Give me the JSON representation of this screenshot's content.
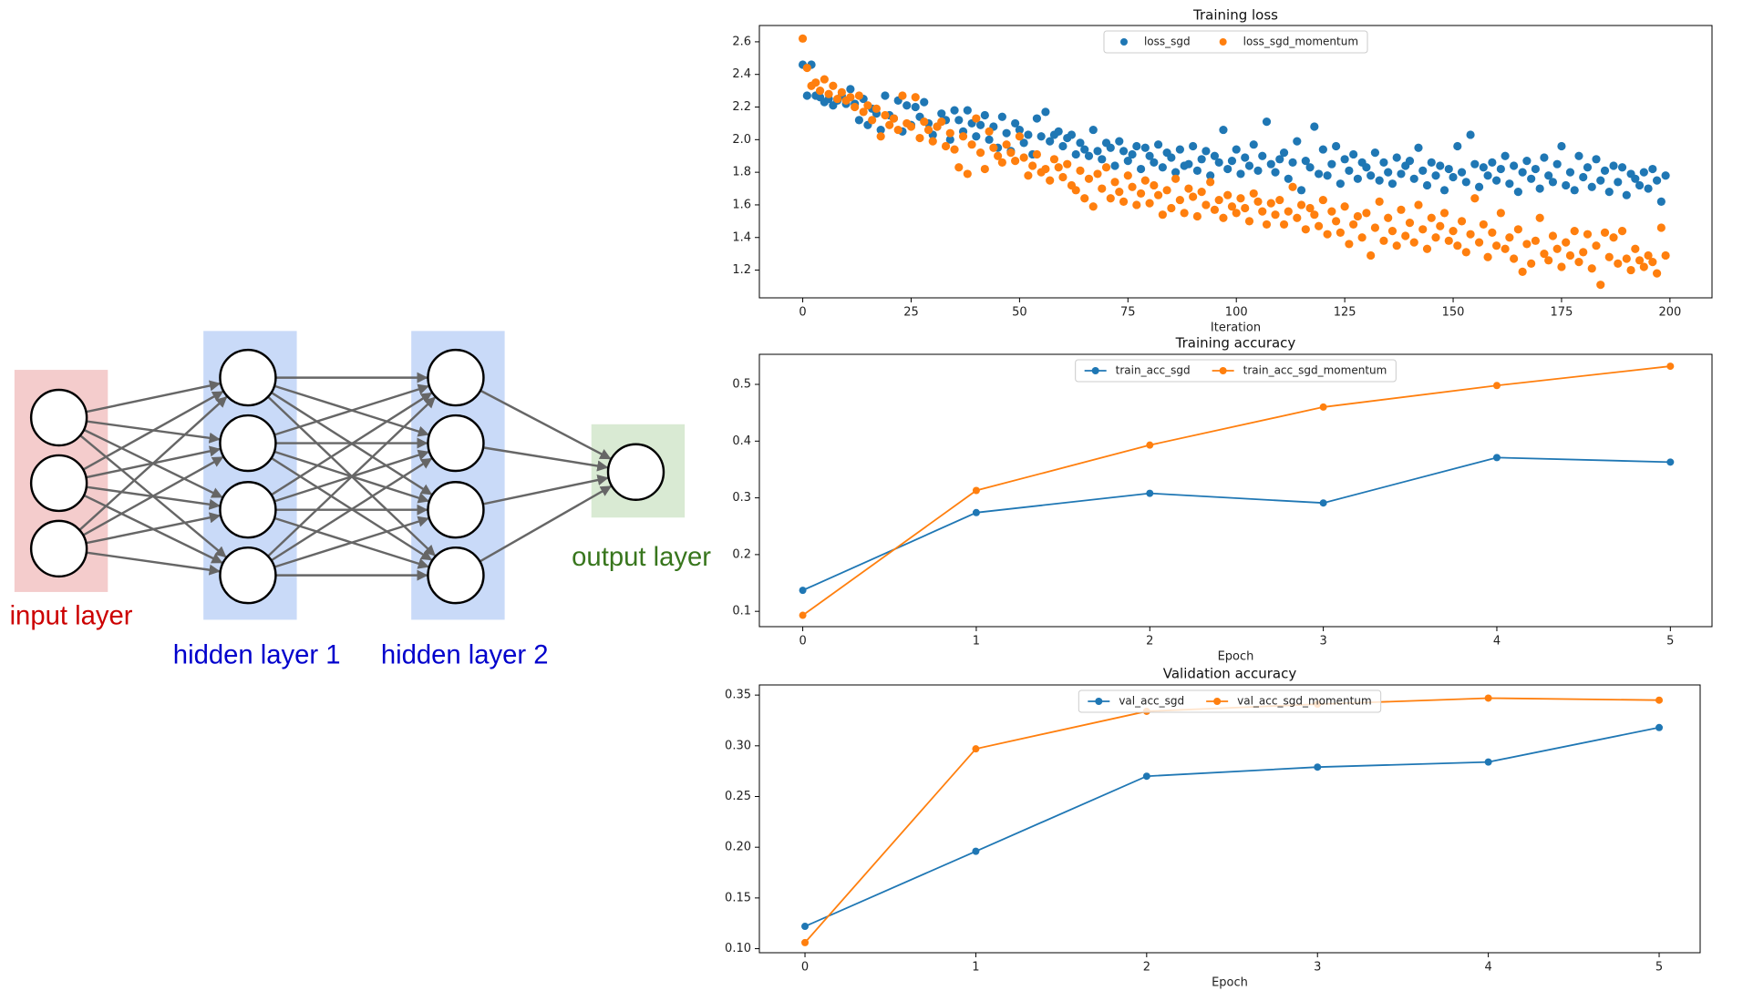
{
  "diagram": {
    "layer_labels": [
      "input layer",
      "hidden layer 1",
      "hidden layer 2",
      "output layer"
    ]
  },
  "chart_data": [
    {
      "type": "scatter",
      "title": "Training loss",
      "x_label": "Iteration",
      "legend": "upper center",
      "xlim": [
        -10,
        209.7
      ],
      "xticks": [
        0,
        25,
        50,
        75,
        100,
        125,
        150,
        175,
        200
      ],
      "ylim": [
        1.03,
        2.7
      ],
      "yticks": [
        1.2,
        1.4,
        1.6,
        1.8,
        {
          "value": 2,
          "label": "2.0"
        },
        2.2,
        2.4,
        2.6
      ],
      "x": [
        0,
        1,
        2,
        3,
        4,
        5,
        6,
        7,
        8,
        9,
        10,
        11,
        12,
        13,
        14,
        15,
        16,
        17,
        18,
        19,
        20,
        21,
        22,
        23,
        24,
        25,
        26,
        27,
        28,
        29,
        30,
        31,
        32,
        33,
        34,
        35,
        36,
        37,
        38,
        39,
        40,
        41,
        42,
        43,
        44,
        45,
        46,
        47,
        48,
        49,
        50,
        51,
        52,
        53,
        54,
        55,
        56,
        57,
        58,
        59,
        60,
        61,
        62,
        63,
        64,
        65,
        66,
        67,
        68,
        69,
        70,
        71,
        72,
        73,
        74,
        75,
        76,
        77,
        78,
        79,
        80,
        81,
        82,
        83,
        84,
        85,
        86,
        87,
        88,
        89,
        90,
        91,
        92,
        93,
        94,
        95,
        96,
        97,
        98,
        99,
        100,
        101,
        102,
        103,
        104,
        105,
        106,
        107,
        108,
        109,
        110,
        111,
        112,
        113,
        114,
        115,
        116,
        117,
        118,
        119,
        120,
        121,
        122,
        123,
        124,
        125,
        126,
        127,
        128,
        129,
        130,
        131,
        132,
        133,
        134,
        135,
        136,
        137,
        138,
        139,
        140,
        141,
        142,
        143,
        144,
        145,
        146,
        147,
        148,
        149,
        150,
        151,
        152,
        153,
        154,
        155,
        156,
        157,
        158,
        159,
        160,
        161,
        162,
        163,
        164,
        165,
        166,
        167,
        168,
        169,
        170,
        171,
        172,
        173,
        174,
        175,
        176,
        177,
        178,
        179,
        180,
        181,
        182,
        183,
        184,
        185,
        186,
        187,
        188,
        189,
        190,
        191,
        192,
        193,
        194,
        195,
        196,
        197,
        198,
        199
      ],
      "series": [
        {
          "name": "loss_sgd",
          "color": "#1f77b4",
          "values": [
            2.46,
            2.27,
            2.46,
            2.27,
            2.26,
            2.23,
            2.25,
            2.21,
            2.24,
            2.27,
            2.22,
            2.31,
            2.22,
            2.12,
            2.25,
            2.09,
            2.19,
            2.16,
            2.06,
            2.27,
            2.15,
            2.13,
            2.24,
            2.05,
            2.21,
            2.09,
            2.2,
            2.14,
            2.23,
            2.1,
            2.03,
            2.08,
            2.16,
            2.12,
            2.0,
            2.18,
            2.12,
            2.05,
            2.18,
            2.1,
            2.02,
            2.09,
            2.15,
            2.0,
            2.08,
            1.95,
            2.14,
            2.04,
            1.93,
            2.1,
            2.06,
            1.98,
            2.03,
            1.91,
            2.13,
            2.02,
            2.17,
            1.99,
            2.03,
            2.05,
            1.96,
            2.01,
            2.03,
            1.91,
            1.98,
            1.94,
            1.9,
            2.06,
            1.93,
            1.88,
            1.98,
            1.95,
            1.84,
            1.99,
            1.93,
            1.87,
            1.91,
            1.96,
            1.82,
            1.95,
            1.9,
            1.86,
            1.97,
            1.83,
            1.92,
            1.89,
            1.8,
            1.94,
            1.84,
            1.85,
            1.96,
            1.81,
            1.88,
            1.93,
            1.78,
            1.9,
            1.86,
            2.06,
            1.82,
            1.87,
            1.94,
            1.79,
            1.89,
            1.84,
            1.97,
            1.81,
            1.9,
            2.11,
            1.85,
            1.8,
            1.88,
            1.92,
            1.76,
            1.86,
            1.99,
            1.69,
            1.87,
            1.83,
            2.08,
            1.79,
            1.94,
            1.78,
            1.85,
            1.96,
            1.73,
            1.88,
            1.81,
            1.91,
            1.76,
            1.86,
            1.83,
            1.78,
            1.92,
            1.75,
            1.86,
            1.8,
            1.73,
            1.89,
            1.79,
            1.84,
            1.87,
            1.76,
            1.95,
            1.81,
            1.72,
            1.86,
            1.78,
            1.84,
            1.69,
            1.82,
            1.77,
            1.96,
            1.8,
            1.74,
            2.03,
            1.85,
            1.71,
            1.83,
            1.78,
            1.86,
            1.75,
            1.82,
            1.9,
            1.73,
            1.84,
            1.68,
            1.8,
            1.87,
            1.76,
            1.82,
            1.7,
            1.89,
            1.78,
            1.74,
            1.85,
            1.96,
            1.72,
            1.8,
            1.69,
            1.9,
            1.77,
            1.83,
            1.71,
            1.88,
            1.75,
            1.81,
            1.68,
            1.84,
            1.74,
            1.83,
            1.66,
            1.79,
            1.76,
            1.72,
            1.8,
            1.7,
            1.82,
            1.75,
            1.62,
            1.78
          ]
        },
        {
          "name": "loss_sgd_momentum",
          "color": "#ff7f0e",
          "values": [
            2.62,
            2.44,
            2.33,
            2.35,
            2.3,
            2.37,
            2.28,
            2.33,
            2.25,
            2.29,
            2.24,
            2.26,
            2.2,
            2.27,
            2.17,
            2.21,
            2.12,
            2.19,
            2.02,
            2.15,
            2.09,
            2.13,
            2.06,
            2.27,
            2.1,
            2.08,
            2.26,
            2.01,
            2.11,
            2.06,
            1.99,
            2.08,
            2.11,
            1.96,
            2.04,
            1.94,
            1.83,
            2.02,
            1.79,
            1.97,
            2.13,
            1.92,
            1.82,
            2.05,
            1.95,
            1.9,
            1.86,
            1.97,
            1.92,
            1.87,
            2.02,
            1.89,
            1.78,
            1.84,
            1.91,
            1.8,
            1.82,
            1.75,
            1.88,
            1.83,
            1.77,
            1.85,
            1.72,
            1.69,
            1.81,
            1.64,
            1.76,
            1.59,
            1.79,
            1.7,
            1.83,
            1.64,
            1.74,
            1.68,
            1.62,
            1.78,
            1.71,
            1.6,
            1.67,
            1.75,
            1.61,
            1.72,
            1.66,
            1.54,
            1.69,
            1.58,
            1.76,
            1.63,
            1.55,
            1.7,
            1.65,
            1.53,
            1.68,
            1.6,
            1.74,
            1.57,
            1.63,
            1.52,
            1.66,
            1.59,
            1.55,
            1.64,
            1.58,
            1.5,
            1.67,
            1.62,
            1.56,
            1.48,
            1.61,
            1.54,
            1.63,
            1.48,
            1.56,
            1.71,
            1.52,
            1.6,
            1.45,
            1.58,
            1.54,
            1.47,
            1.63,
            1.42,
            1.56,
            1.5,
            1.43,
            1.59,
            1.36,
            1.48,
            1.53,
            1.4,
            1.55,
            1.29,
            1.46,
            1.62,
            1.38,
            1.52,
            1.44,
            1.35,
            1.57,
            1.41,
            1.49,
            1.37,
            1.6,
            1.45,
            1.33,
            1.52,
            1.4,
            1.47,
            1.55,
            1.38,
            1.44,
            1.35,
            1.5,
            1.31,
            1.42,
            1.64,
            1.37,
            1.48,
            1.28,
            1.43,
            1.35,
            1.55,
            1.33,
            1.4,
            1.27,
            1.45,
            1.19,
            1.36,
            1.24,
            1.38,
            1.52,
            1.3,
            1.26,
            1.41,
            1.33,
            1.22,
            1.37,
            1.29,
            1.44,
            1.25,
            1.31,
            1.42,
            1.21,
            1.35,
            1.11,
            1.43,
            1.28,
            1.4,
            1.24,
            1.44,
            1.27,
            1.2,
            1.33,
            1.26,
            1.22,
            1.29,
            1.25,
            1.18,
            1.46,
            1.29
          ]
        }
      ]
    },
    {
      "type": "line",
      "title": "Training accuracy",
      "x_label": "Epoch",
      "legend": "upper center",
      "xlim": [
        -0.25,
        5.24
      ],
      "xticks": [
        0,
        1,
        2,
        3,
        4,
        5
      ],
      "ylim": [
        0.073,
        0.553
      ],
      "yticks": [
        0.1,
        0.2,
        0.3,
        0.4,
        0.5
      ],
      "x": [
        0,
        1,
        2,
        3,
        4,
        5
      ],
      "series": [
        {
          "name": "train_acc_sgd",
          "color": "#1f77b4",
          "values": [
            0.137,
            0.274,
            0.308,
            0.291,
            0.371,
            0.363
          ]
        },
        {
          "name": "train_acc_sgd_momentum",
          "color": "#ff7f0e",
          "values": [
            0.093,
            0.313,
            0.393,
            0.46,
            0.498,
            0.532
          ]
        }
      ]
    },
    {
      "type": "line",
      "title": "Validation accuracy",
      "x_label": "Epoch",
      "legend": "upper center",
      "xlim": [
        -0.267,
        5.24
      ],
      "xticks": [
        0,
        1,
        2,
        3,
        4,
        5
      ],
      "ylim": [
        0.096,
        0.36
      ],
      "yticks": [
        {
          "value": 0.1,
          "label": "0.10"
        },
        0.15,
        {
          "value": 0.2,
          "label": "0.20"
        },
        0.25,
        {
          "value": 0.3,
          "label": "0.30"
        },
        0.35
      ],
      "x": [
        0,
        1,
        2,
        3,
        4,
        5
      ],
      "series": [
        {
          "name": "val_acc_sgd",
          "color": "#1f77b4",
          "values": [
            0.122,
            0.196,
            0.27,
            0.279,
            0.284,
            0.318
          ]
        },
        {
          "name": "val_acc_sgd_momentum",
          "color": "#ff7f0e",
          "values": [
            0.106,
            0.297,
            0.334,
            0.341,
            0.347,
            0.345
          ]
        }
      ]
    }
  ]
}
